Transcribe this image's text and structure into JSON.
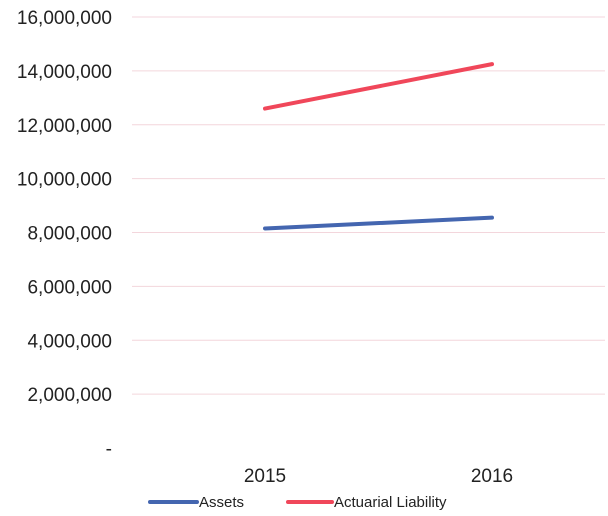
{
  "chart_data": {
    "type": "line",
    "categories": [
      "2015",
      "2016"
    ],
    "series": [
      {
        "name": "Assets",
        "values": [
          8150000,
          8550000
        ],
        "color": "#4466b0"
      },
      {
        "name": "Actuarial Liability",
        "values": [
          12600000,
          14250000
        ],
        "color": "#f0475a"
      }
    ],
    "ylim": [
      0,
      16000000
    ],
    "yticks": [
      0,
      2000000,
      4000000,
      6000000,
      8000000,
      10000000,
      12000000,
      14000000,
      16000000
    ],
    "ytick_labels": [
      "-",
      "2,000,000",
      "4,000,000",
      "6,000,000",
      "8,000,000",
      "10,000,000",
      "12,000,000",
      "14,000,000",
      "16,000,000"
    ],
    "grid": true,
    "grid_color": "#f3d6dc",
    "legend": "bottom"
  }
}
